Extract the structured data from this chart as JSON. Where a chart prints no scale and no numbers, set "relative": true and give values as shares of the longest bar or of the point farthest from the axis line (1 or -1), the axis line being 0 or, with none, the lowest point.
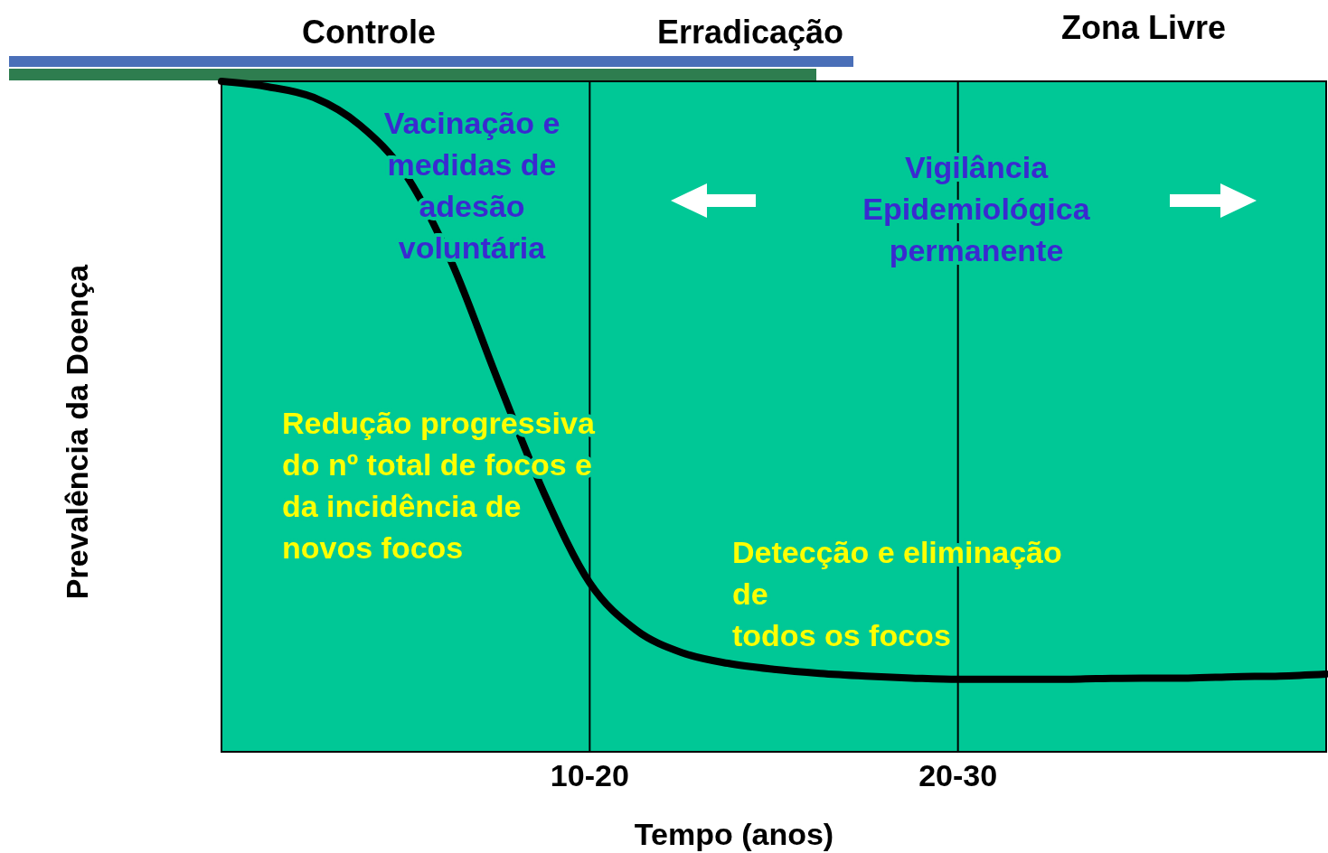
{
  "chart_data": {
    "type": "line",
    "relative": true,
    "xlabel": "Tempo (anos)",
    "ylabel": "Prevalência da Doença",
    "categories": [
      null,
      null,
      null,
      null,
      null,
      null,
      null,
      null,
      "10-20",
      null,
      null,
      null,
      null,
      null,
      null,
      null,
      "20-30",
      null,
      null,
      null,
      null,
      null,
      null,
      null,
      null
    ],
    "series": [
      {
        "color": "#000000",
        "values": [
          1.0,
          0.992,
          0.976,
          0.935,
          0.861,
          0.73,
          0.555,
          0.387,
          0.252,
          0.182,
          0.148,
          0.132,
          0.123,
          0.117,
          0.113,
          0.11,
          0.108,
          0.108,
          0.108,
          0.109,
          0.11,
          0.11,
          0.112,
          0.113,
          0.116
        ]
      }
    ],
    "ref_lines": [
      {
        "axis": "x",
        "value": "10-20",
        "color": "#000000"
      },
      {
        "axis": "x",
        "value": "20-30",
        "color": "#000000"
      }
    ],
    "annotations": [
      "Controle",
      "Erradicação",
      "Zona Livre",
      "Vacinação e\nmedidas de\nadesão\nvoluntária",
      "Vigilância\nEpidemiológica\npermanente",
      "Redução progressiva\ndo nº total de focos e\nda incidência de\nnovos focos",
      "Detecção e eliminação\nde\ntodos os focos"
    ],
    "grid": false,
    "marker": "none",
    "line_style": "solid"
  }
}
